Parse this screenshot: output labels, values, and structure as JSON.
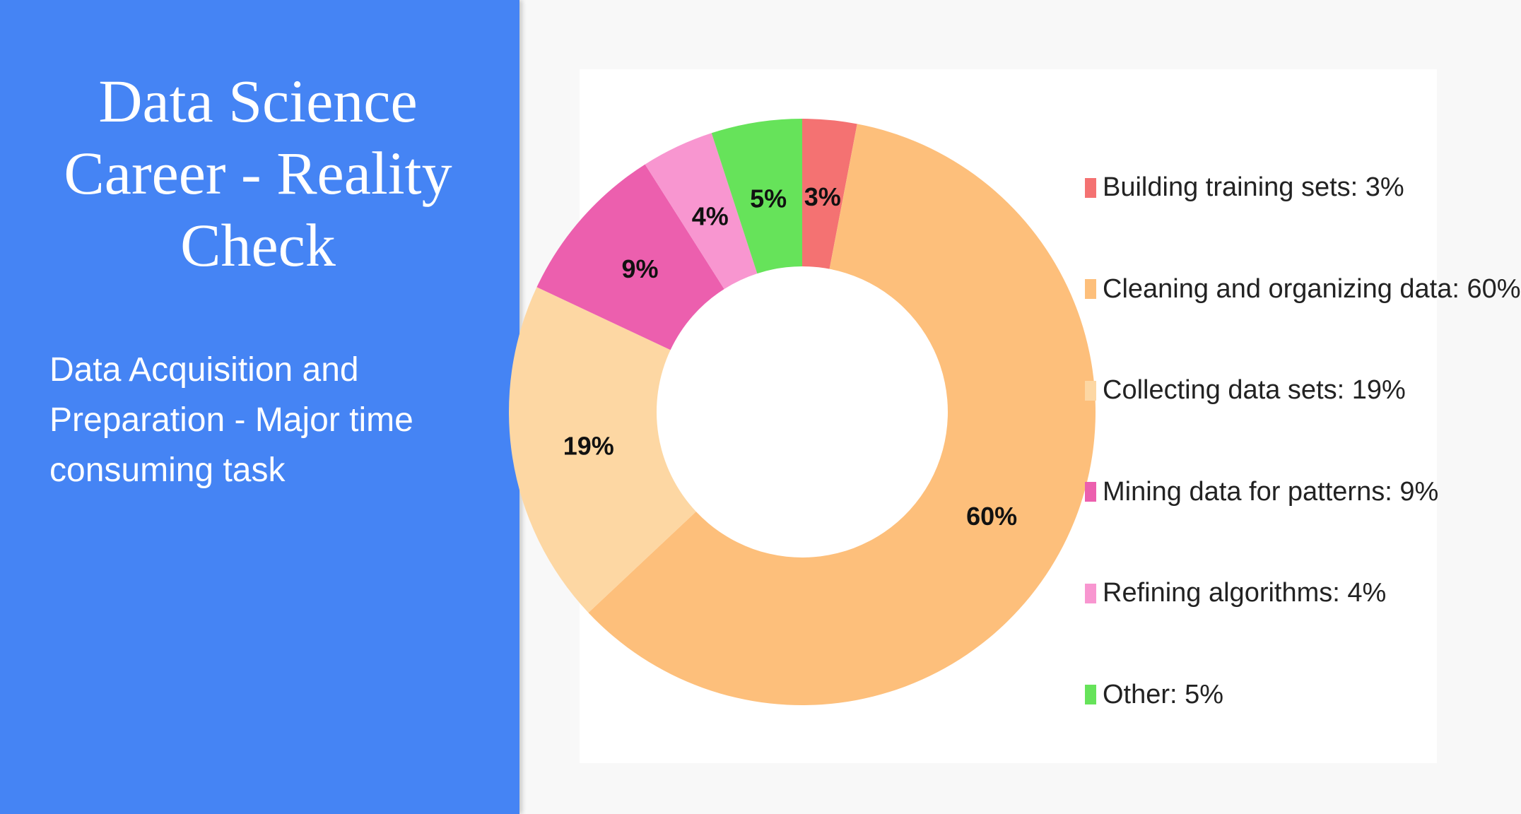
{
  "slide": {
    "title": "Data Science Career - Reality Check",
    "subtitle": "Data Acquisition and Preparation - Major time consuming task"
  },
  "chart_data": {
    "type": "pie",
    "donut": true,
    "title": "",
    "legend_position": "right",
    "categories": [
      "Building training sets",
      "Cleaning and organizing data",
      "Collecting data sets",
      "Mining data for patterns",
      "Refining algorithms",
      "Other"
    ],
    "values": [
      3,
      60,
      19,
      9,
      4,
      5
    ],
    "slice_labels": [
      "3%",
      "60%",
      "19%",
      "9%",
      "4%",
      "5%"
    ],
    "legend_entries": [
      "Building training sets: 3%",
      "Cleaning and organizing data: 60%",
      "Collecting data sets: 19%",
      "Mining data for patterns: 9%",
      "Refining algorithms: 4%",
      "Other: 5%"
    ],
    "colors": [
      "#f47272",
      "#fdbf7b",
      "#fdd7a3",
      "#ec5fae",
      "#f896d0",
      "#66e35a"
    ]
  }
}
